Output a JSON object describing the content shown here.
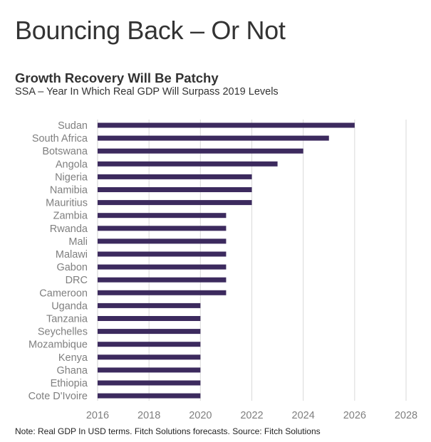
{
  "header": {
    "main_title": "Bouncing Back – Or Not"
  },
  "note": "Note: Real GDP In USD terms. Fitch Solutions forecasts. Source: Fitch Solutions",
  "colors": {
    "bar": "#3c2a5e",
    "grid": "#d9d9d9",
    "label": "#7f7f7f"
  },
  "chart_data": {
    "type": "bar",
    "orientation": "horizontal",
    "title": "Growth Recovery Will Be Patchy",
    "subtitle": "SSA – Year In Which Real GDP Will Surpass 2019 Levels",
    "xlabel": "",
    "ylabel": "",
    "categories": [
      "Sudan",
      "South Africa",
      "Botswana",
      "Angola",
      "Nigeria",
      "Namibia",
      "Mauritius",
      "Zambia",
      "Rwanda",
      "Mali",
      "Malawi",
      "Gabon",
      "DRC",
      "Cameroon",
      "Uganda",
      "Tanzania",
      "Seychelles",
      "Mozambique",
      "Kenya",
      "Ghana",
      "Ethiopia",
      "Cote D'Ivoire"
    ],
    "values": [
      2026,
      2025,
      2024,
      2023,
      2022,
      2022,
      2022,
      2021,
      2021,
      2021,
      2021,
      2021,
      2021,
      2021,
      2020,
      2020,
      2020,
      2020,
      2020,
      2020,
      2020,
      2020
    ],
    "xlim": [
      2016,
      2028
    ],
    "xticks": [
      2016,
      2018,
      2020,
      2022,
      2024,
      2026,
      2028
    ],
    "xtick_labels": [
      "2016",
      "2018",
      "2020",
      "2022",
      "2024",
      "2026",
      "2028"
    ],
    "grid": "vertical",
    "legend": "none"
  }
}
